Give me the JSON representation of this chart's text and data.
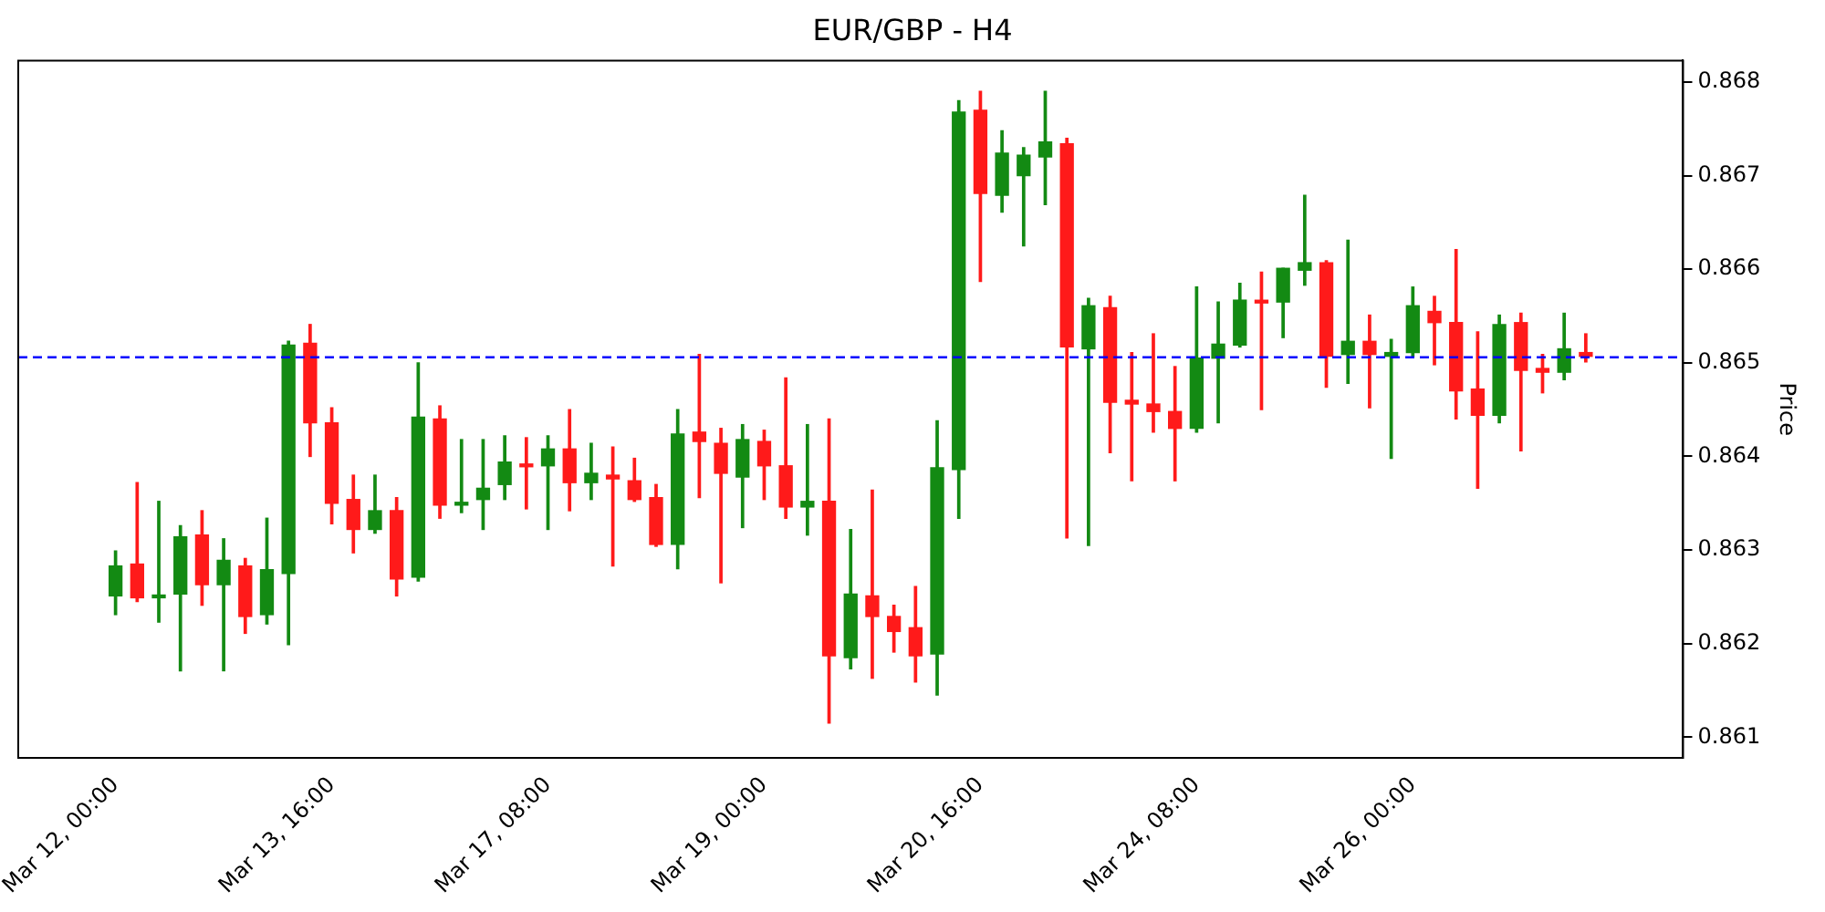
{
  "chart_data": {
    "type": "candlestick",
    "title": "EUR/GBP - H4",
    "ylabel": "Price",
    "categories": [
      "Mar 12, 00:00",
      null,
      null,
      null,
      null,
      null,
      null,
      null,
      null,
      null,
      "Mar 13, 16:00",
      null,
      null,
      null,
      null,
      null,
      null,
      null,
      null,
      null,
      "Mar 17, 08:00",
      null,
      null,
      null,
      null,
      null,
      null,
      null,
      null,
      null,
      "Mar 19, 00:00",
      null,
      null,
      null,
      null,
      null,
      null,
      null,
      null,
      null,
      "Mar 20, 16:00",
      null,
      null,
      null,
      null,
      null,
      null,
      null,
      null,
      null,
      "Mar 24, 08:00",
      null,
      null,
      null,
      null,
      null,
      null,
      null,
      null,
      null,
      "Mar 26, 00:00",
      null,
      null,
      null,
      null,
      null,
      null,
      null,
      null
    ],
    "ohlc": [
      [
        0.86251,
        0.86299,
        0.86231,
        0.86283
      ],
      [
        0.86285,
        0.86372,
        0.86245,
        0.86249
      ],
      [
        0.86249,
        0.86352,
        0.86223,
        0.86251
      ],
      [
        0.86253,
        0.86326,
        0.86171,
        0.86314
      ],
      [
        0.86316,
        0.86342,
        0.86241,
        0.86263
      ],
      [
        0.86263,
        0.86312,
        0.86171,
        0.86289
      ],
      [
        0.86283,
        0.86291,
        0.86211,
        0.86229
      ],
      [
        0.86231,
        0.86334,
        0.86221,
        0.86279
      ],
      [
        0.86275,
        0.86523,
        0.86199,
        0.86519
      ],
      [
        0.86521,
        0.86541,
        0.864,
        0.86436
      ],
      [
        0.86436,
        0.86452,
        0.86328,
        0.8635
      ],
      [
        0.86354,
        0.8638,
        0.86297,
        0.86322
      ],
      [
        0.86322,
        0.8638,
        0.86318,
        0.86342
      ],
      [
        0.86342,
        0.86356,
        0.86251,
        0.86269
      ],
      [
        0.86271,
        0.865,
        0.86267,
        0.86442
      ],
      [
        0.8644,
        0.86454,
        0.86334,
        0.86348
      ],
      [
        0.86348,
        0.86418,
        0.8634,
        0.86351
      ],
      [
        0.86354,
        0.86418,
        0.86322,
        0.86366
      ],
      [
        0.8637,
        0.86422,
        0.86354,
        0.86394
      ],
      [
        0.86391,
        0.8642,
        0.86344,
        0.86389
      ],
      [
        0.8639,
        0.86422,
        0.86322,
        0.86408
      ],
      [
        0.86408,
        0.8645,
        0.86342,
        0.86372
      ],
      [
        0.86372,
        0.86414,
        0.86354,
        0.86382
      ],
      [
        0.8638,
        0.8641,
        0.86283,
        0.86376
      ],
      [
        0.86374,
        0.86398,
        0.86352,
        0.86354
      ],
      [
        0.86356,
        0.8637,
        0.86304,
        0.86306
      ],
      [
        0.86306,
        0.8645,
        0.8628,
        0.86424
      ],
      [
        0.86426,
        0.86509,
        0.86356,
        0.86416
      ],
      [
        0.86414,
        0.8643,
        0.86265,
        0.86382
      ],
      [
        0.86378,
        0.86434,
        0.86324,
        0.86418
      ],
      [
        0.86416,
        0.86428,
        0.86354,
        0.8639
      ],
      [
        0.8639,
        0.86484,
        0.86334,
        0.86346
      ],
      [
        0.86346,
        0.86434,
        0.86316,
        0.86352
      ],
      [
        0.86352,
        0.8644,
        0.86115,
        0.86187
      ],
      [
        0.86185,
        0.86322,
        0.86173,
        0.86253
      ],
      [
        0.86251,
        0.86364,
        0.86163,
        0.86229
      ],
      [
        0.86229,
        0.86241,
        0.86191,
        0.86213
      ],
      [
        0.86217,
        0.86261,
        0.86159,
        0.86187
      ],
      [
        0.86189,
        0.86438,
        0.86145,
        0.86388
      ],
      [
        0.86386,
        0.8678,
        0.86334,
        0.86768
      ],
      [
        0.8677,
        0.8679,
        0.86587,
        0.86681
      ],
      [
        0.86679,
        0.86748,
        0.86661,
        0.86724
      ],
      [
        0.867,
        0.8673,
        0.86625,
        0.86722
      ],
      [
        0.8672,
        0.8679,
        0.86669,
        0.86736
      ],
      [
        0.86734,
        0.8674,
        0.86313,
        0.86517
      ],
      [
        0.86515,
        0.86569,
        0.86305,
        0.86561
      ],
      [
        0.86559,
        0.86571,
        0.86404,
        0.86458
      ],
      [
        0.8646,
        0.86511,
        0.86374,
        0.86456
      ],
      [
        0.86456,
        0.86531,
        0.86426,
        0.86448
      ],
      [
        0.86448,
        0.86496,
        0.86374,
        0.8643
      ],
      [
        0.8643,
        0.86581,
        0.86426,
        0.86505
      ],
      [
        0.86505,
        0.86565,
        0.86436,
        0.8652
      ],
      [
        0.86519,
        0.86585,
        0.86517,
        0.86567
      ],
      [
        0.86566,
        0.86597,
        0.8645,
        0.86564
      ],
      [
        0.86565,
        0.86601,
        0.86527,
        0.86601
      ],
      [
        0.86599,
        0.86679,
        0.86583,
        0.86607
      ],
      [
        0.86607,
        0.86609,
        0.86474,
        0.86507
      ],
      [
        0.86509,
        0.86631,
        0.86478,
        0.86523
      ],
      [
        0.86523,
        0.86551,
        0.86452,
        0.86509
      ],
      [
        0.86507,
        0.86525,
        0.86398,
        0.86511
      ],
      [
        0.86511,
        0.86581,
        0.86507,
        0.86561
      ],
      [
        0.86555,
        0.86571,
        0.86498,
        0.86543
      ],
      [
        0.86543,
        0.86621,
        0.8644,
        0.8647
      ],
      [
        0.86472,
        0.86533,
        0.86366,
        0.86444
      ],
      [
        0.86444,
        0.86551,
        0.86436,
        0.86541
      ],
      [
        0.86543,
        0.86553,
        0.86406,
        0.86492
      ],
      [
        0.86494,
        0.86509,
        0.86468,
        0.8649
      ],
      [
        0.8649,
        0.86553,
        0.86482,
        0.86515
      ],
      [
        0.86511,
        0.86531,
        0.86501,
        0.86507
      ]
    ],
    "colors": [
      "#138a13",
      "#ff1a1a",
      "#138a13",
      "#138a13",
      "#ff1a1a",
      "#138a13",
      "#ff1a1a",
      "#138a13",
      "#138a13",
      "#ff1a1a",
      "#ff1a1a",
      "#ff1a1a",
      "#138a13",
      "#ff1a1a",
      "#138a13",
      "#ff1a1a",
      "#138a13",
      "#138a13",
      "#138a13",
      "#ff1a1a",
      "#138a13",
      "#ff1a1a",
      "#138a13",
      "#ff1a1a",
      "#ff1a1a",
      "#ff1a1a",
      "#138a13",
      "#ff1a1a",
      "#ff1a1a",
      "#138a13",
      "#ff1a1a",
      "#ff1a1a",
      "#138a13",
      "#ff1a1a",
      "#138a13",
      "#ff1a1a",
      "#ff1a1a",
      "#ff1a1a",
      "#138a13",
      "#138a13",
      "#ff1a1a",
      "#138a13",
      "#138a13",
      "#138a13",
      "#ff1a1a",
      "#138a13",
      "#ff1a1a",
      "#ff1a1a",
      "#ff1a1a",
      "#ff1a1a",
      "#138a13",
      "#138a13",
      "#138a13",
      "#ff1a1a",
      "#138a13",
      "#138a13",
      "#ff1a1a",
      "#138a13",
      "#ff1a1a",
      "#138a13",
      "#138a13",
      "#ff1a1a",
      "#ff1a1a",
      "#ff1a1a",
      "#138a13",
      "#ff1a1a",
      "#ff1a1a",
      "#138a13",
      "#ff1a1a"
    ],
    "ylim": [
      0.86078,
      0.86823
    ],
    "yticks": [
      0.861,
      0.862,
      0.863,
      0.864,
      0.865,
      0.866,
      0.867,
      0.868
    ],
    "ref_lines": [
      {
        "axis": "y",
        "value": 0.86506,
        "color": "#0000ff",
        "line_style": "dashed"
      }
    ],
    "grid": false,
    "legend": false
  }
}
